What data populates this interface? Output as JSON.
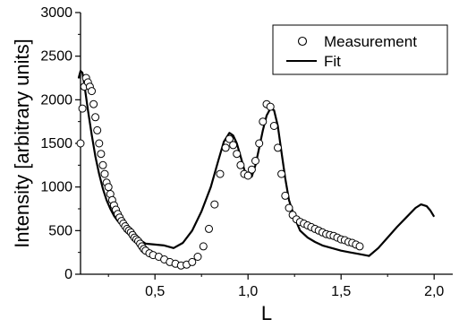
{
  "chart_data": {
    "type": "scatter",
    "xlabel": "L",
    "ylabel": "Intensity [arbitrary units]",
    "xlim": [
      0.1,
      2.1
    ],
    "ylim": [
      0,
      3000
    ],
    "x_ticks": [
      0.5,
      1.0,
      1.5,
      2.0
    ],
    "x_tick_labels": [
      "0,5",
      "1,0",
      "1,5",
      "2,0"
    ],
    "y_ticks": [
      0,
      500,
      1000,
      1500,
      2000,
      2500,
      3000
    ],
    "y_tick_labels": [
      "0",
      "500",
      "1000",
      "1500",
      "2000",
      "2500",
      "3000"
    ],
    "grid": false,
    "legend_position": "top-right",
    "series": [
      {
        "name": "Measurement",
        "style": "open-circle",
        "color": "#000000",
        "x": [
          0.1,
          0.11,
          0.12,
          0.13,
          0.14,
          0.15,
          0.16,
          0.17,
          0.18,
          0.19,
          0.2,
          0.21,
          0.22,
          0.23,
          0.24,
          0.25,
          0.26,
          0.27,
          0.28,
          0.29,
          0.3,
          0.31,
          0.32,
          0.33,
          0.34,
          0.35,
          0.36,
          0.37,
          0.38,
          0.39,
          0.4,
          0.41,
          0.42,
          0.43,
          0.44,
          0.45,
          0.47,
          0.49,
          0.52,
          0.55,
          0.58,
          0.61,
          0.64,
          0.67,
          0.7,
          0.73,
          0.76,
          0.79,
          0.82,
          0.85,
          0.88,
          0.9,
          0.92,
          0.94,
          0.96,
          0.98,
          1.0,
          1.02,
          1.04,
          1.06,
          1.08,
          1.1,
          1.12,
          1.14,
          1.16,
          1.18,
          1.2,
          1.22,
          1.24,
          1.26,
          1.28,
          1.3,
          1.32,
          1.34,
          1.36,
          1.38,
          1.4,
          1.42,
          1.44,
          1.46,
          1.48,
          1.5,
          1.52,
          1.54,
          1.56,
          1.58,
          1.6
        ],
        "y": [
          1500,
          1900,
          2150,
          2250,
          2200,
          2150,
          2100,
          1950,
          1800,
          1650,
          1500,
          1380,
          1250,
          1150,
          1050,
          1000,
          920,
          850,
          790,
          740,
          690,
          650,
          610,
          580,
          550,
          520,
          500,
          480,
          450,
          420,
          400,
          380,
          350,
          320,
          290,
          270,
          240,
          220,
          200,
          170,
          140,
          120,
          100,
          110,
          140,
          200,
          320,
          520,
          800,
          1150,
          1450,
          1550,
          1480,
          1380,
          1250,
          1150,
          1130,
          1200,
          1300,
          1500,
          1750,
          1950,
          1920,
          1700,
          1450,
          1150,
          900,
          760,
          680,
          630,
          600,
          580,
          560,
          540,
          520,
          500,
          480,
          460,
          450,
          440,
          420,
          400,
          390,
          370,
          360,
          340,
          320
        ]
      },
      {
        "name": "Fit",
        "style": "line",
        "color": "#000000",
        "x": [
          0.09,
          0.1,
          0.11,
          0.12,
          0.14,
          0.16,
          0.18,
          0.2,
          0.22,
          0.24,
          0.26,
          0.28,
          0.3,
          0.33,
          0.36,
          0.4,
          0.45,
          0.5,
          0.55,
          0.6,
          0.65,
          0.7,
          0.75,
          0.8,
          0.84,
          0.87,
          0.9,
          0.92,
          0.94,
          0.96,
          0.98,
          1.0,
          1.02,
          1.04,
          1.06,
          1.08,
          1.1,
          1.12,
          1.14,
          1.16,
          1.18,
          1.2,
          1.22,
          1.25,
          1.28,
          1.32,
          1.36,
          1.4,
          1.45,
          1.5,
          1.55,
          1.6,
          1.65,
          1.7,
          1.75,
          1.8,
          1.85,
          1.9,
          1.93,
          1.96,
          1.98,
          2.0
        ],
        "y": [
          2250,
          2330,
          2310,
          2180,
          1880,
          1600,
          1350,
          1150,
          980,
          850,
          750,
          670,
          610,
          550,
          500,
          420,
          350,
          340,
          330,
          300,
          360,
          500,
          720,
          1000,
          1300,
          1520,
          1620,
          1590,
          1500,
          1350,
          1200,
          1100,
          1120,
          1250,
          1450,
          1650,
          1820,
          1900,
          1880,
          1700,
          1400,
          1100,
          850,
          650,
          500,
          420,
          370,
          330,
          300,
          270,
          250,
          230,
          210,
          300,
          420,
          540,
          650,
          760,
          800,
          780,
          730,
          660
        ]
      }
    ]
  }
}
